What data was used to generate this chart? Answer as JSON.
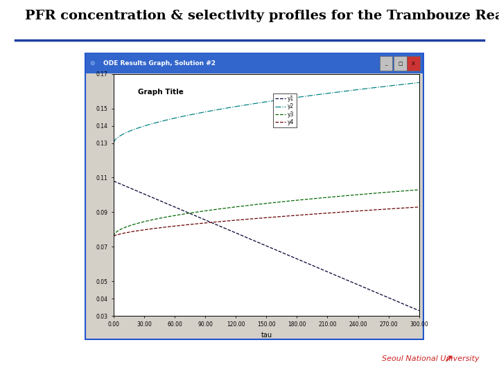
{
  "title": "PFR concentration & selectivity profiles for the Trambouze Reaction",
  "title_fontsize": 14,
  "subtitle_line_color": "#1F3F9F",
  "university_text": "Seoul National University",
  "window_title": "ODE Results Graph, Solution #2",
  "graph_inner_title": "Graph Title",
  "xlabel": "tau",
  "ylabel": "",
  "xlim": [
    0,
    300
  ],
  "ylim": [
    0.03,
    0.17
  ],
  "xticks": [
    0.0,
    30.0,
    60.0,
    90.0,
    120.0,
    150.0,
    180.0,
    210.0,
    240.0,
    270.0,
    300.0
  ],
  "yticks": [
    0.03,
    0.04,
    0.05,
    0.07,
    0.09,
    0.11,
    0.13,
    0.14,
    0.15,
    0.17
  ],
  "legend_labels": [
    "y1",
    "y2",
    "y3",
    "y4"
  ],
  "curve_colors": [
    "#000033",
    "#008080",
    "#006600",
    "#660000"
  ],
  "bg_color": "#ffffff",
  "inner_bg": "#ffffff",
  "window_bar_color": "#3366CC",
  "outer_frame_color": "#2255CC"
}
